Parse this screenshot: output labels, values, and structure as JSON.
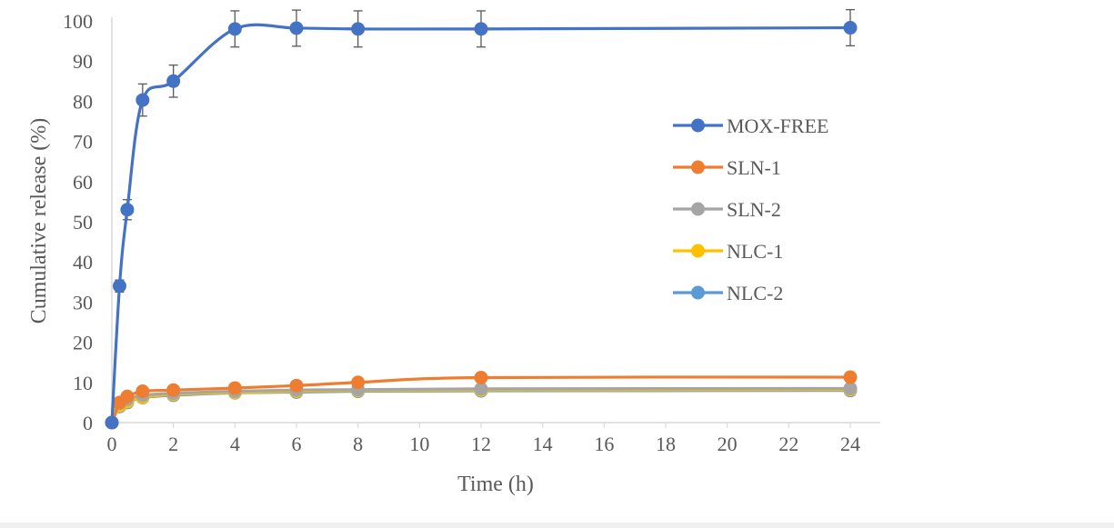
{
  "chart_data": {
    "type": "line",
    "title": "",
    "xlabel": "Time (h)",
    "ylabel": "Cumulative release (%)",
    "xlim": [
      0,
      24
    ],
    "ylim": [
      0,
      100
    ],
    "xticks": [
      0,
      2,
      4,
      6,
      8,
      10,
      12,
      14,
      16,
      18,
      20,
      22,
      24
    ],
    "yticks": [
      0,
      10,
      20,
      30,
      40,
      50,
      60,
      70,
      80,
      90,
      100
    ],
    "grid": false,
    "smooth": true,
    "legend_position": "right",
    "series": [
      {
        "name": "MOX-FREE",
        "color": "#4472C4",
        "x": [
          0,
          0.25,
          0.5,
          1,
          2,
          4,
          6,
          8,
          12,
          24
        ],
        "y": [
          0,
          34,
          53,
          80.3,
          85,
          98,
          98.2,
          98,
          98,
          98.3
        ],
        "error": [
          0,
          1.5,
          2.5,
          4,
          4,
          4.5,
          4.5,
          4.5,
          4.5,
          4.5
        ]
      },
      {
        "name": "SLN-1",
        "color": "#ED7D31",
        "x": [
          0,
          0.25,
          0.5,
          1,
          2,
          4,
          6,
          8,
          12,
          24
        ],
        "y": [
          0,
          5,
          6.5,
          7.8,
          8.1,
          8.6,
          9.2,
          10,
          11.2,
          11.3
        ],
        "error": [
          0,
          0.5,
          0.5,
          0.5,
          0.5,
          0.5,
          0.5,
          0.5,
          0.5,
          0.5
        ]
      },
      {
        "name": "SLN-2",
        "color": "#A5A5A5",
        "x": [
          0,
          0.25,
          0.5,
          1,
          2,
          4,
          6,
          8,
          12,
          24
        ],
        "y": [
          0,
          4.8,
          5.8,
          6.8,
          7.3,
          7.8,
          8.1,
          8.2,
          8.4,
          8.5
        ],
        "error": [
          0,
          0.5,
          0.5,
          0.5,
          0.5,
          0.6,
          0.8,
          0.8,
          0.8,
          0.5
        ]
      },
      {
        "name": "NLC-1",
        "color": "#FFC000",
        "x": [
          0,
          0.25,
          0.5,
          1,
          2,
          4,
          6,
          8,
          12,
          24
        ],
        "y": [
          0,
          4.2,
          5.2,
          6.3,
          7,
          7.5,
          7.8,
          8,
          8.1,
          8.2
        ],
        "error": [
          0,
          0.5,
          0.5,
          0.5,
          0.5,
          0.6,
          0.8,
          0.8,
          0.8,
          0.5
        ]
      },
      {
        "name": "NLC-2",
        "color": "#5B9BD5",
        "x": [
          0,
          0.25,
          0.5,
          1,
          2,
          4,
          6,
          8,
          12,
          24
        ],
        "y": [
          0,
          4,
          5,
          6.2,
          6.8,
          7.4,
          7.6,
          7.8,
          7.9,
          8
        ],
        "error": [
          0,
          0.5,
          0.5,
          0.5,
          0.5,
          0.6,
          0.8,
          0.8,
          0.8,
          0.5
        ]
      }
    ]
  }
}
